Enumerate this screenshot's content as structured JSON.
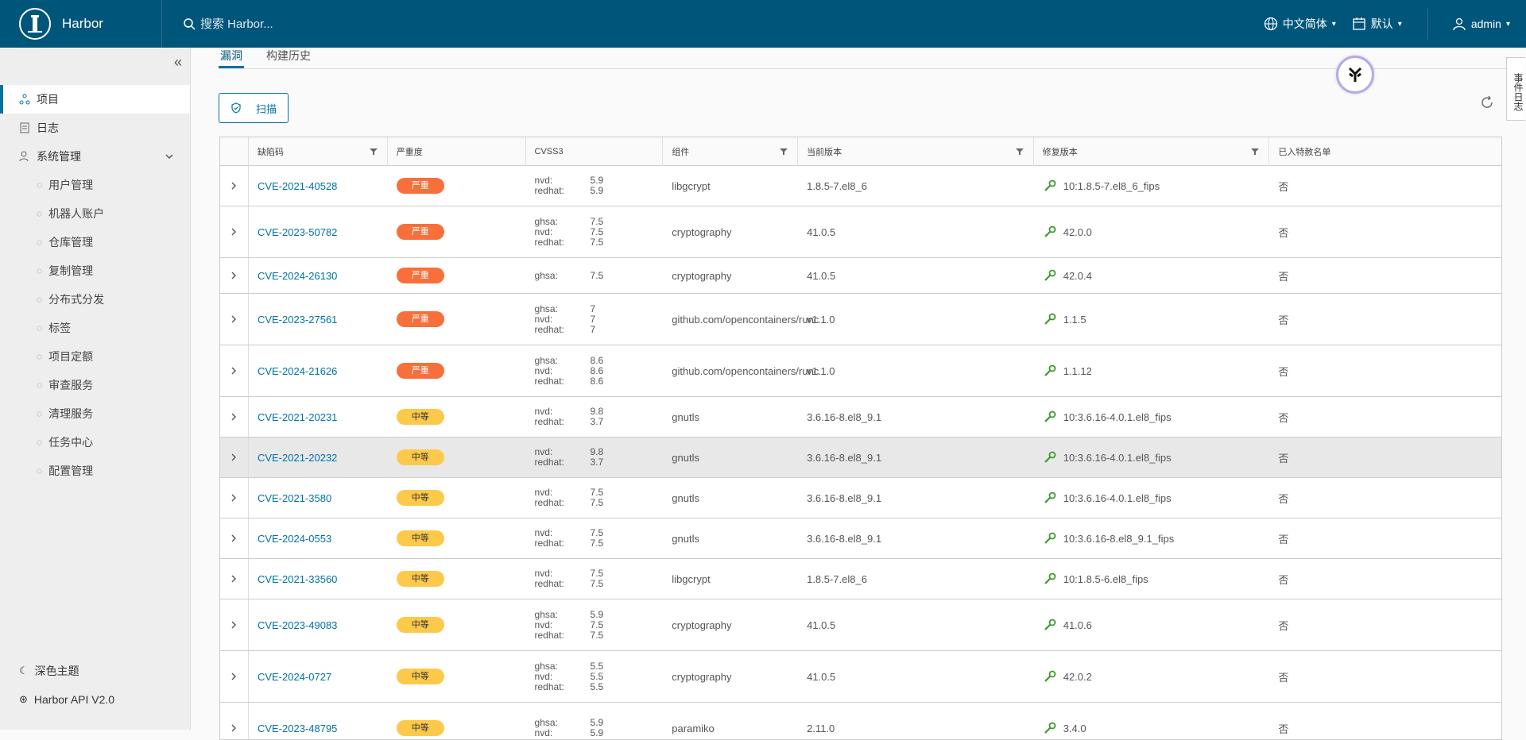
{
  "header": {
    "brand": "Harbor",
    "search_placeholder": "搜索 Harbor...",
    "language": "中文简体",
    "date_format": "默认",
    "user": "admin"
  },
  "sidebar": {
    "items": [
      {
        "label": "项目",
        "icon": "projects-icon",
        "active": true
      },
      {
        "label": "日志",
        "icon": "logs-icon"
      },
      {
        "label": "系统管理",
        "icon": "admin-icon",
        "expandable": true
      }
    ],
    "sub_items": [
      {
        "label": "用户管理",
        "icon": "users-icon"
      },
      {
        "label": "机器人账户",
        "icon": "robot-icon"
      },
      {
        "label": "仓库管理",
        "icon": "registry-icon"
      },
      {
        "label": "复制管理",
        "icon": "replication-icon"
      },
      {
        "label": "分布式分发",
        "icon": "distribution-icon"
      },
      {
        "label": "标签",
        "icon": "tag-icon"
      },
      {
        "label": "项目定额",
        "icon": "quota-icon"
      },
      {
        "label": "审查服务",
        "icon": "shield-icon"
      },
      {
        "label": "清理服务",
        "icon": "trash-icon"
      },
      {
        "label": "任务中心",
        "icon": "job-icon"
      },
      {
        "label": "配置管理",
        "icon": "gear-icon"
      }
    ],
    "footer": {
      "theme": "深色主题",
      "api": "Harbor API V2.0"
    }
  },
  "tabs": [
    {
      "label": "漏洞",
      "active": true
    },
    {
      "label": "构建历史"
    }
  ],
  "scan_button": "扫描",
  "side_tab": "事件日志",
  "table": {
    "columns": [
      "缺陷码",
      "严重度",
      "CVSS3",
      "组件",
      "当前版本",
      "修复版本",
      "已入特赦名单"
    ],
    "rows": [
      {
        "cve": "CVE-2021-40528",
        "severity": "严重",
        "level": "high",
        "cvss": [
          [
            "nvd:",
            "5.9"
          ],
          [
            "redhat:",
            "5.9"
          ]
        ],
        "component": "libgcrypt",
        "current": "1.8.5-7.el8_6",
        "fixed": "10:1.8.5-7.el8_6_fips",
        "allowlist": "否",
        "h": 51
      },
      {
        "cve": "CVE-2023-50782",
        "severity": "严重",
        "level": "high",
        "cvss": [
          [
            "ghsa:",
            "7.5"
          ],
          [
            "nvd:",
            "7.5"
          ],
          [
            "redhat:",
            "7.5"
          ]
        ],
        "component": "cryptography",
        "current": "41.0.5",
        "fixed": "42.0.0",
        "allowlist": "否",
        "h": 65
      },
      {
        "cve": "CVE-2024-26130",
        "severity": "严重",
        "level": "high",
        "cvss": [
          [
            "ghsa:",
            "7.5"
          ]
        ],
        "component": "cryptography",
        "current": "41.0.5",
        "fixed": "42.0.4",
        "allowlist": "否",
        "h": 45
      },
      {
        "cve": "CVE-2023-27561",
        "severity": "严重",
        "level": "high",
        "cvss": [
          [
            "ghsa:",
            "7"
          ],
          [
            "nvd:",
            "7"
          ],
          [
            "redhat:",
            "7"
          ]
        ],
        "component": "github.com/opencontainers/runc",
        "current": "v1.1.0",
        "fixed": "1.1.5",
        "allowlist": "否",
        "h": 65
      },
      {
        "cve": "CVE-2024-21626",
        "severity": "严重",
        "level": "high",
        "cvss": [
          [
            "ghsa:",
            "8.6"
          ],
          [
            "nvd:",
            "8.6"
          ],
          [
            "redhat:",
            "8.6"
          ]
        ],
        "component": "github.com/opencontainers/runc",
        "current": "v1.1.0",
        "fixed": "1.1.12",
        "allowlist": "否",
        "h": 65
      },
      {
        "cve": "CVE-2021-20231",
        "severity": "中等",
        "level": "med",
        "cvss": [
          [
            "nvd:",
            "9.8"
          ],
          [
            "redhat:",
            "3.7"
          ]
        ],
        "component": "gnutls",
        "current": "3.6.16-8.el8_9.1",
        "fixed": "10:3.6.16-4.0.1.el8_fips",
        "allowlist": "否",
        "h": 51
      },
      {
        "cve": "CVE-2021-20232",
        "severity": "中等",
        "level": "med",
        "cvss": [
          [
            "nvd:",
            "9.8"
          ],
          [
            "redhat:",
            "3.7"
          ]
        ],
        "component": "gnutls",
        "current": "3.6.16-8.el8_9.1",
        "fixed": "10:3.6.16-4.0.1.el8_fips",
        "allowlist": "否",
        "h": 51,
        "hl": true
      },
      {
        "cve": "CVE-2021-3580",
        "severity": "中等",
        "level": "med",
        "cvss": [
          [
            "nvd:",
            "7.5"
          ],
          [
            "redhat:",
            "7.5"
          ]
        ],
        "component": "gnutls",
        "current": "3.6.16-8.el8_9.1",
        "fixed": "10:3.6.16-4.0.1.el8_fips",
        "allowlist": "否",
        "h": 51
      },
      {
        "cve": "CVE-2024-0553",
        "severity": "中等",
        "level": "med",
        "cvss": [
          [
            "nvd:",
            "7.5"
          ],
          [
            "redhat:",
            "7.5"
          ]
        ],
        "component": "gnutls",
        "current": "3.6.16-8.el8_9.1",
        "fixed": "10:3.6.16-8.el8_9.1_fips",
        "allowlist": "否",
        "h": 51
      },
      {
        "cve": "CVE-2021-33560",
        "severity": "中等",
        "level": "med",
        "cvss": [
          [
            "nvd:",
            "7.5"
          ],
          [
            "redhat:",
            "7.5"
          ]
        ],
        "component": "libgcrypt",
        "current": "1.8.5-7.el8_6",
        "fixed": "10:1.8.5-6.el8_fips",
        "allowlist": "否",
        "h": 51
      },
      {
        "cve": "CVE-2023-49083",
        "severity": "中等",
        "level": "med",
        "cvss": [
          [
            "ghsa:",
            "5.9"
          ],
          [
            "nvd:",
            "7.5"
          ],
          [
            "redhat:",
            "7.5"
          ]
        ],
        "component": "cryptography",
        "current": "41.0.5",
        "fixed": "41.0.6",
        "allowlist": "否",
        "h": 65
      },
      {
        "cve": "CVE-2024-0727",
        "severity": "中等",
        "level": "med",
        "cvss": [
          [
            "ghsa:",
            "5.5"
          ],
          [
            "nvd:",
            "5.5"
          ],
          [
            "redhat:",
            "5.5"
          ]
        ],
        "component": "cryptography",
        "current": "41.0.5",
        "fixed": "42.0.2",
        "allowlist": "否",
        "h": 65
      },
      {
        "cve": "CVE-2023-48795",
        "severity": "中等",
        "level": "med",
        "cvss": [
          [
            "ghsa:",
            "5.9"
          ],
          [
            "nvd:",
            "5.9"
          ]
        ],
        "component": "paramiko",
        "current": "2.11.0",
        "fixed": "3.4.0",
        "allowlist": "否",
        "h": 65
      }
    ]
  }
}
